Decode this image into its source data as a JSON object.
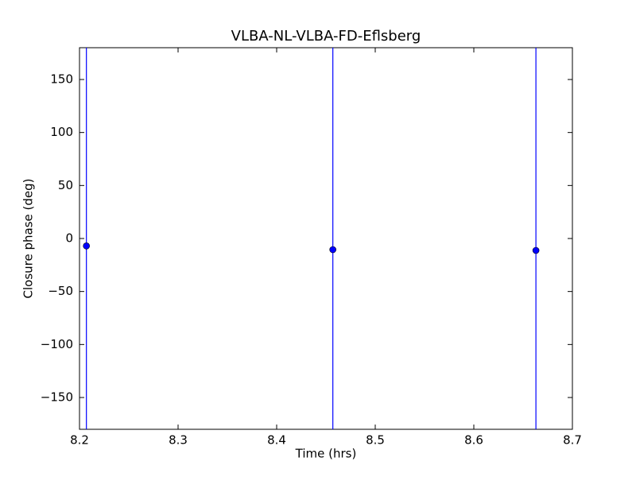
{
  "chart_data": {
    "type": "errorbar",
    "title": "VLBA-NL-VLBA-FD-Eflsberg",
    "x_label": "Time (hrs)",
    "y_label": "Closure phase (deg)",
    "x": [
      8.207,
      8.457,
      8.663
    ],
    "values": [
      -7,
      -10.5,
      -11.25
    ],
    "errors": [
      200,
      200,
      200
    ],
    "color": "#0000ff",
    "xlim": [
      8.2,
      8.7
    ],
    "ylim": [
      -180,
      180
    ],
    "xticks": [
      8.2,
      8.3,
      8.4,
      8.5,
      8.6,
      8.7
    ],
    "yticks": [
      {
        "value": -150,
        "label": "−150"
      },
      {
        "value": -100,
        "label": "−100"
      },
      {
        "value": -50,
        "label": "−50"
      },
      0,
      50,
      100,
      150
    ]
  }
}
